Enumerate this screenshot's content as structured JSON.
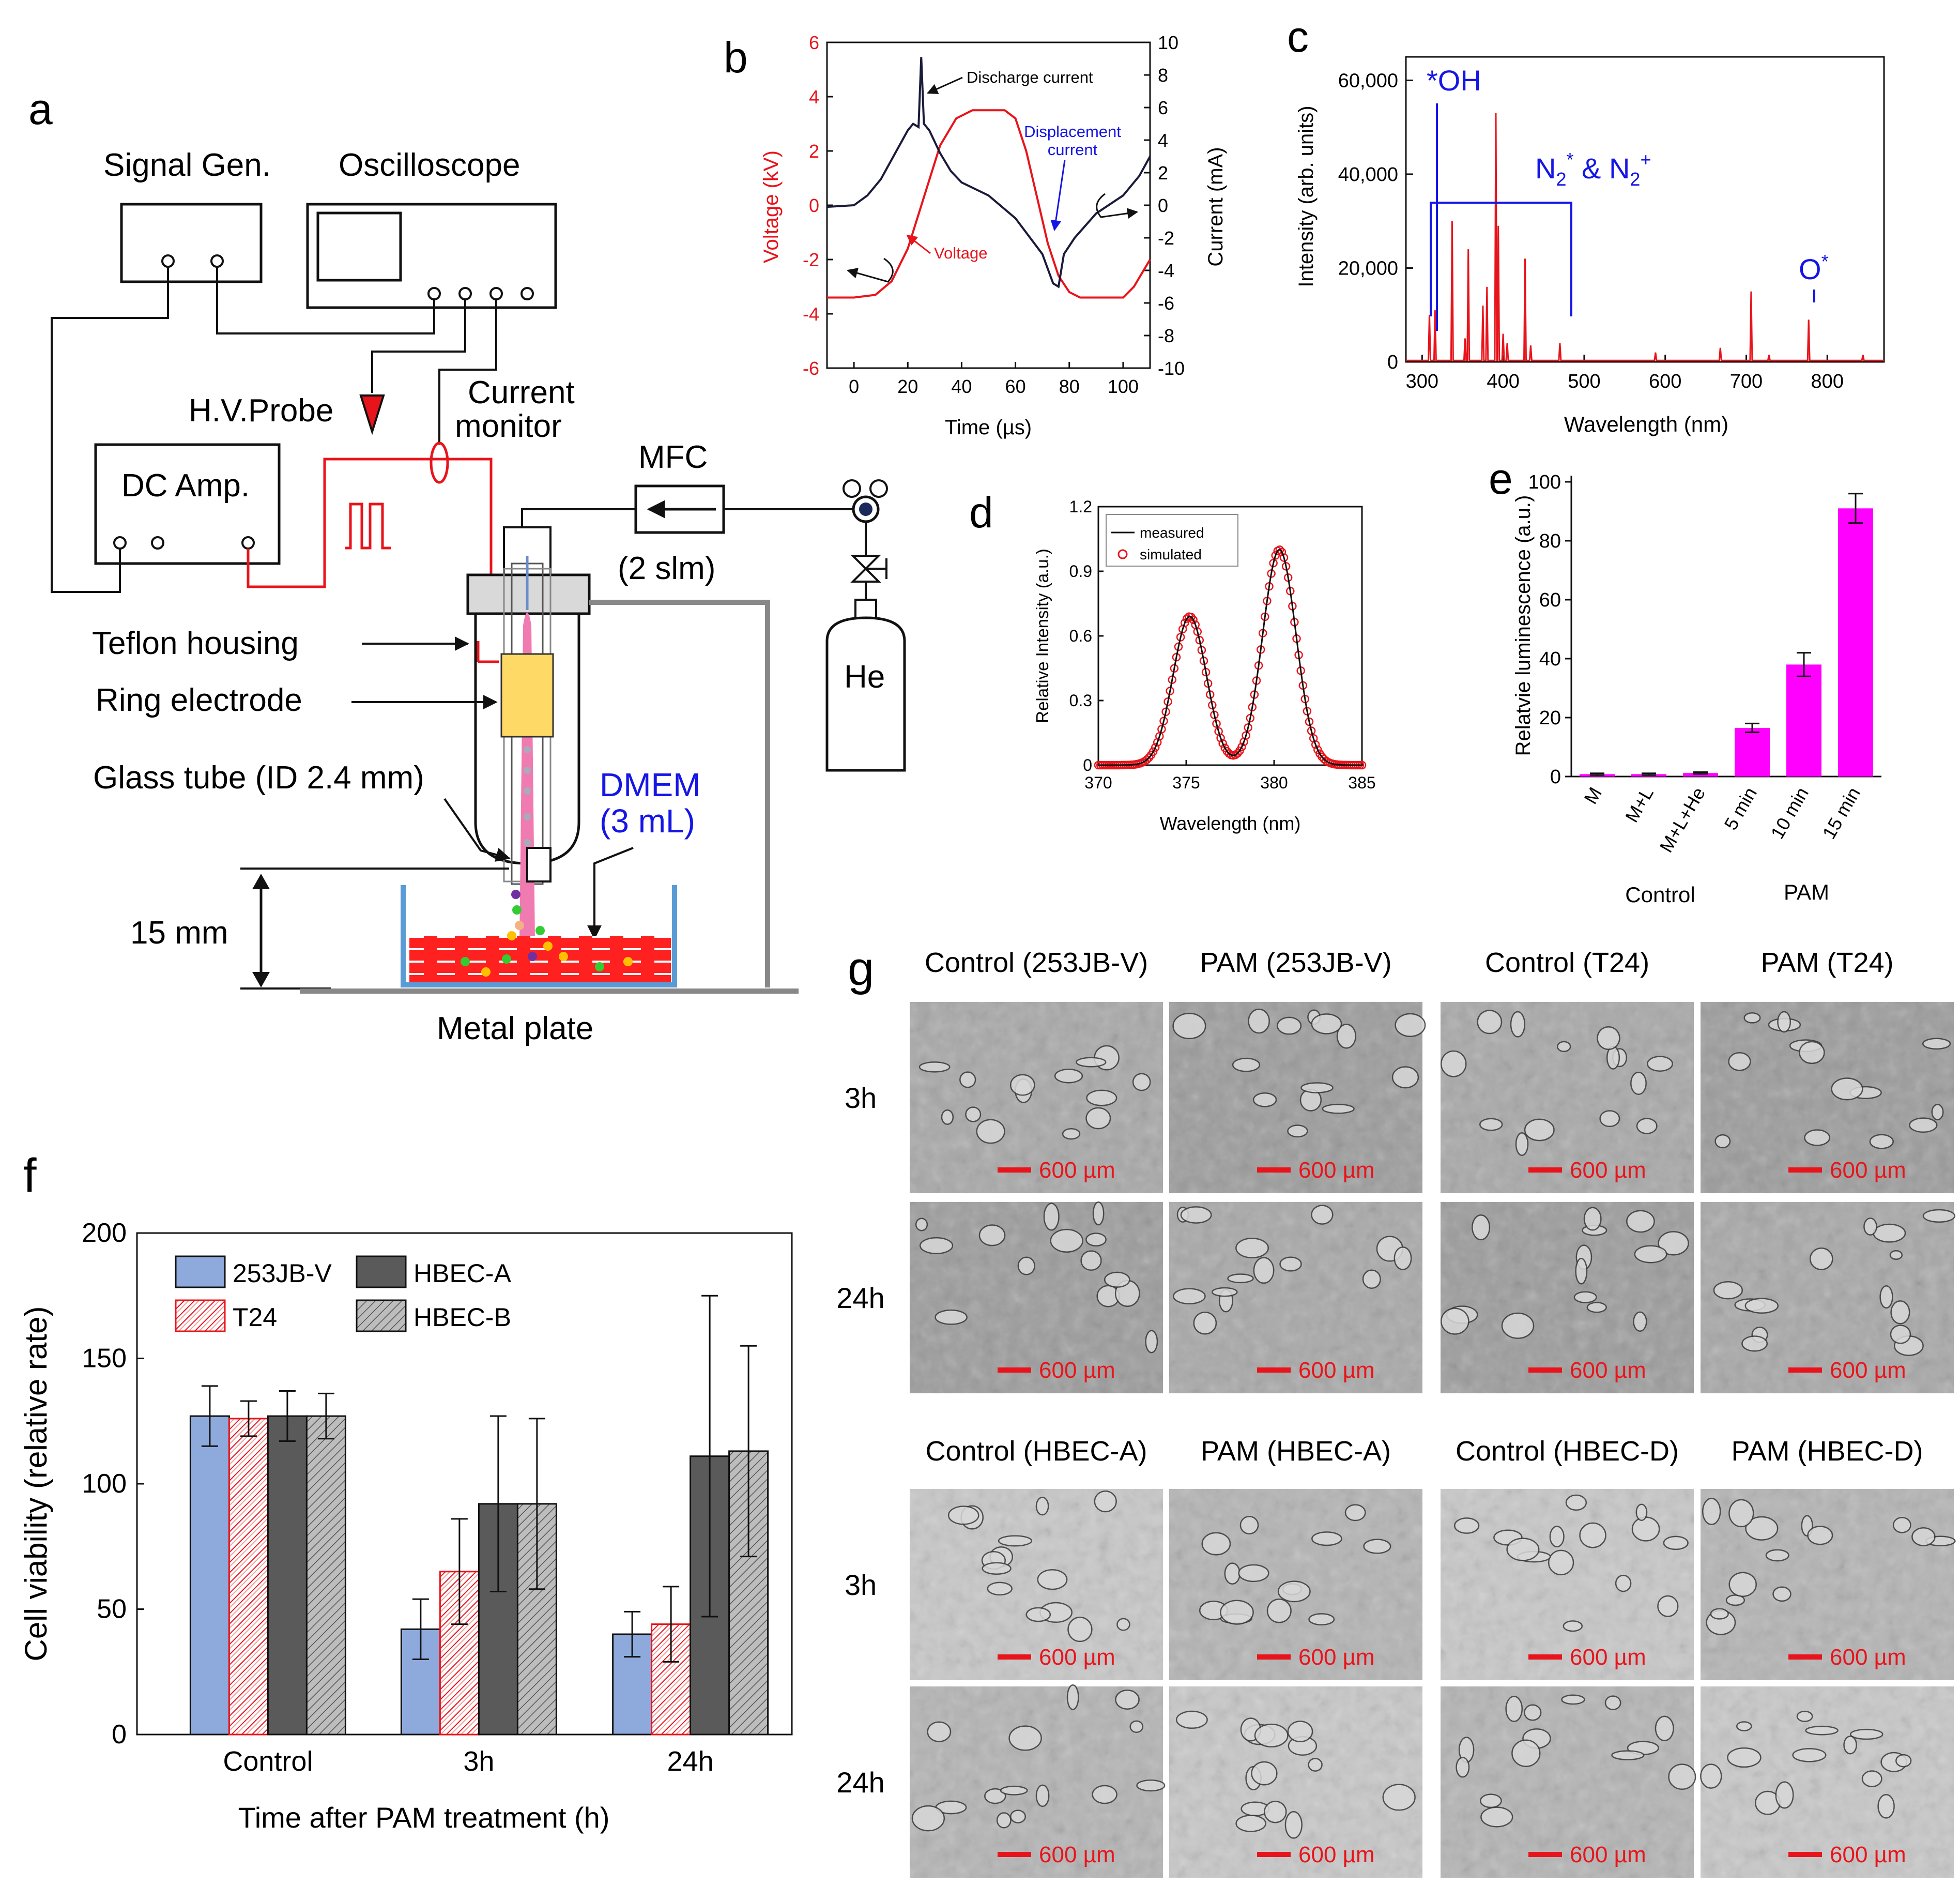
{
  "panels": {
    "a": "a",
    "b": "b",
    "c": "c",
    "d": "d",
    "e": "e",
    "f": "f",
    "g": "g"
  },
  "schematic": {
    "signal_gen": "Signal Gen.",
    "oscilloscope": "Oscilloscope",
    "hv_probe": "H.V.Probe",
    "current_monitor_1": "Current",
    "current_monitor_2": "monitor",
    "dc_amp": "DC Amp.",
    "mfc": "MFC",
    "flow": "(2 slm)",
    "he": "He",
    "teflon": "Teflon housing",
    "ring": "Ring electrode",
    "glass": "Glass tube (ID 2.4 mm)",
    "dmem_1": "DMEM",
    "dmem_2": "(3 mL)",
    "gap": "15 mm",
    "plate": "Metal plate"
  },
  "colors": {
    "red": "#e8141b",
    "blue": "#1515e6",
    "magenta": "#ff00ff",
    "lightblue": "#8ea9db",
    "gray": "#555555"
  },
  "chart_b": {
    "type": "line",
    "xlabel": "Time (µs)",
    "ylabel_left": "Voltage (kV)",
    "ylabel_right": "Current (mA)",
    "xlim": [
      -10,
      110
    ],
    "ylim_left": [
      -6,
      6
    ],
    "ylim_right": [
      -10,
      10
    ],
    "xticks": [
      "0",
      "20",
      "40",
      "60",
      "80",
      "100"
    ],
    "yticks_left": [
      "6",
      "4",
      "2",
      "0",
      "-2",
      "-4",
      "-6"
    ],
    "yticks_right": [
      "10",
      "8",
      "6",
      "4",
      "2",
      "0",
      "-2",
      "-4",
      "-6",
      "-8",
      "-10"
    ],
    "annotations": {
      "discharge": "Discharge current",
      "displacement_1": "Displacement",
      "displacement_2": "current",
      "voltage": "Voltage"
    },
    "series": [
      {
        "name": "Voltage",
        "axis": "left",
        "x": [
          -10,
          0,
          8,
          14,
          20,
          26,
          32,
          38,
          44,
          56,
          60,
          64,
          68,
          72,
          76,
          80,
          84,
          88,
          94,
          100,
          104,
          110
        ],
        "y": [
          -3.4,
          -3.4,
          -3.3,
          -2.8,
          -1.6,
          0.3,
          2.2,
          3.2,
          3.5,
          3.5,
          3.2,
          2.0,
          0.3,
          -1.4,
          -2.6,
          -3.2,
          -3.4,
          -3.4,
          -3.4,
          -3.4,
          -3.0,
          -2.0
        ]
      },
      {
        "name": "Current",
        "axis": "right",
        "x": [
          -10,
          0,
          5,
          10,
          15,
          20,
          22,
          24,
          25,
          26,
          28,
          32,
          36,
          40,
          50,
          60,
          70,
          74,
          76,
          78,
          82,
          90,
          100,
          106,
          110
        ],
        "y": [
          -0.1,
          0.0,
          0.6,
          1.6,
          3.1,
          4.6,
          5.0,
          4.8,
          9.1,
          5.0,
          4.6,
          3.2,
          2.1,
          1.4,
          0.6,
          -0.8,
          -3.0,
          -4.8,
          -5.0,
          -3.0,
          -2.0,
          -0.5,
          0.6,
          1.8,
          3.0
        ]
      }
    ]
  },
  "chart_c": {
    "type": "line",
    "xlabel": "Wavelength (nm)",
    "ylabel": "Intensity (arb. units)",
    "xlim": [
      280,
      870
    ],
    "ylim": [
      0,
      65000
    ],
    "xticks": [
      "300",
      "400",
      "500",
      "600",
      "700",
      "800"
    ],
    "yticks": [
      "0",
      "20,000",
      "40,000",
      "60,000"
    ],
    "annotations": {
      "oh": "*OH",
      "n2_a": "N",
      "n2_sub": "2",
      "n2_sup": "*",
      "n2_b": " & N",
      "n2_sub2": "2",
      "n2_sup2": "+",
      "o": "O",
      "o_sup": "*"
    },
    "peaks": [
      [
        309,
        10000
      ],
      [
        316,
        11000
      ],
      [
        337,
        30000
      ],
      [
        353,
        5000
      ],
      [
        357,
        24000
      ],
      [
        375,
        12000
      ],
      [
        380,
        16000
      ],
      [
        391,
        53000
      ],
      [
        394,
        29000
      ],
      [
        400,
        6000
      ],
      [
        405,
        4000
      ],
      [
        427,
        22000
      ],
      [
        434,
        3500
      ],
      [
        470,
        4000
      ],
      [
        588,
        2000
      ],
      [
        668,
        3000
      ],
      [
        706,
        15000
      ],
      [
        728,
        1500
      ],
      [
        777,
        9000
      ],
      [
        844,
        1500
      ]
    ]
  },
  "chart_d": {
    "type": "line",
    "xlabel": "Wavelength (nm)",
    "ylabel": "Relative Intensity (a.u.)",
    "xlim": [
      370,
      385
    ],
    "ylim": [
      0,
      1.2
    ],
    "xticks": [
      "370",
      "375",
      "380",
      "385"
    ],
    "yticks": [
      "0",
      "0.3",
      "0.6",
      "0.9",
      "1.2"
    ],
    "legend": {
      "measured": "measured",
      "simulated": "simulated"
    },
    "peaks": [
      {
        "center": 375.2,
        "amp": 0.69,
        "sigma": 0.95
      },
      {
        "center": 380.3,
        "amp": 1.0,
        "sigma": 0.95
      }
    ]
  },
  "chart_e": {
    "type": "bar",
    "ylabel": "Relatvie luminescence (a.u.)",
    "ylim": [
      0,
      100
    ],
    "yticks": [
      "0",
      "20",
      "40",
      "60",
      "80",
      "100"
    ],
    "categories": [
      "M",
      "M+L",
      "M+L+He",
      "5 min",
      "10 min",
      "15 min"
    ],
    "values": [
      0.8,
      0.8,
      1.2,
      16.5,
      38,
      91
    ],
    "errors": [
      0.3,
      0.3,
      0.3,
      1.5,
      4,
      5
    ],
    "group_labels": {
      "control": "Control",
      "pam": "PAM"
    }
  },
  "chart_f": {
    "type": "bar",
    "ylabel": "Cell viability (relative rate)",
    "xlabel": "Time after PAM treatment (h)",
    "ylim": [
      0,
      200
    ],
    "yticks": [
      "0",
      "50",
      "100",
      "150",
      "200"
    ],
    "categories": [
      "Control",
      "3h",
      "24h"
    ],
    "series": [
      {
        "name": "253JB-V",
        "values": [
          127,
          42,
          40
        ],
        "errors": [
          12,
          12,
          9
        ]
      },
      {
        "name": "T24",
        "values": [
          126,
          65,
          44
        ],
        "errors": [
          7,
          21,
          15
        ]
      },
      {
        "name": "HBEC-A",
        "values": [
          127,
          92,
          111
        ],
        "errors": [
          10,
          35,
          64
        ]
      },
      {
        "name": "HBEC-B",
        "values": [
          127,
          92,
          113
        ],
        "errors": [
          9,
          34,
          42
        ]
      }
    ]
  },
  "micro": {
    "top_headers": [
      "Control (253JB-V)",
      "PAM (253JB-V)",
      "Control (T24)",
      "PAM (T24)"
    ],
    "bottom_headers": [
      "Control (HBEC-A)",
      "PAM (HBEC-A)",
      "Control (HBEC-D)",
      "PAM (HBEC-D)"
    ],
    "rows": [
      "3h",
      "24h"
    ],
    "scale": "600 µm"
  }
}
